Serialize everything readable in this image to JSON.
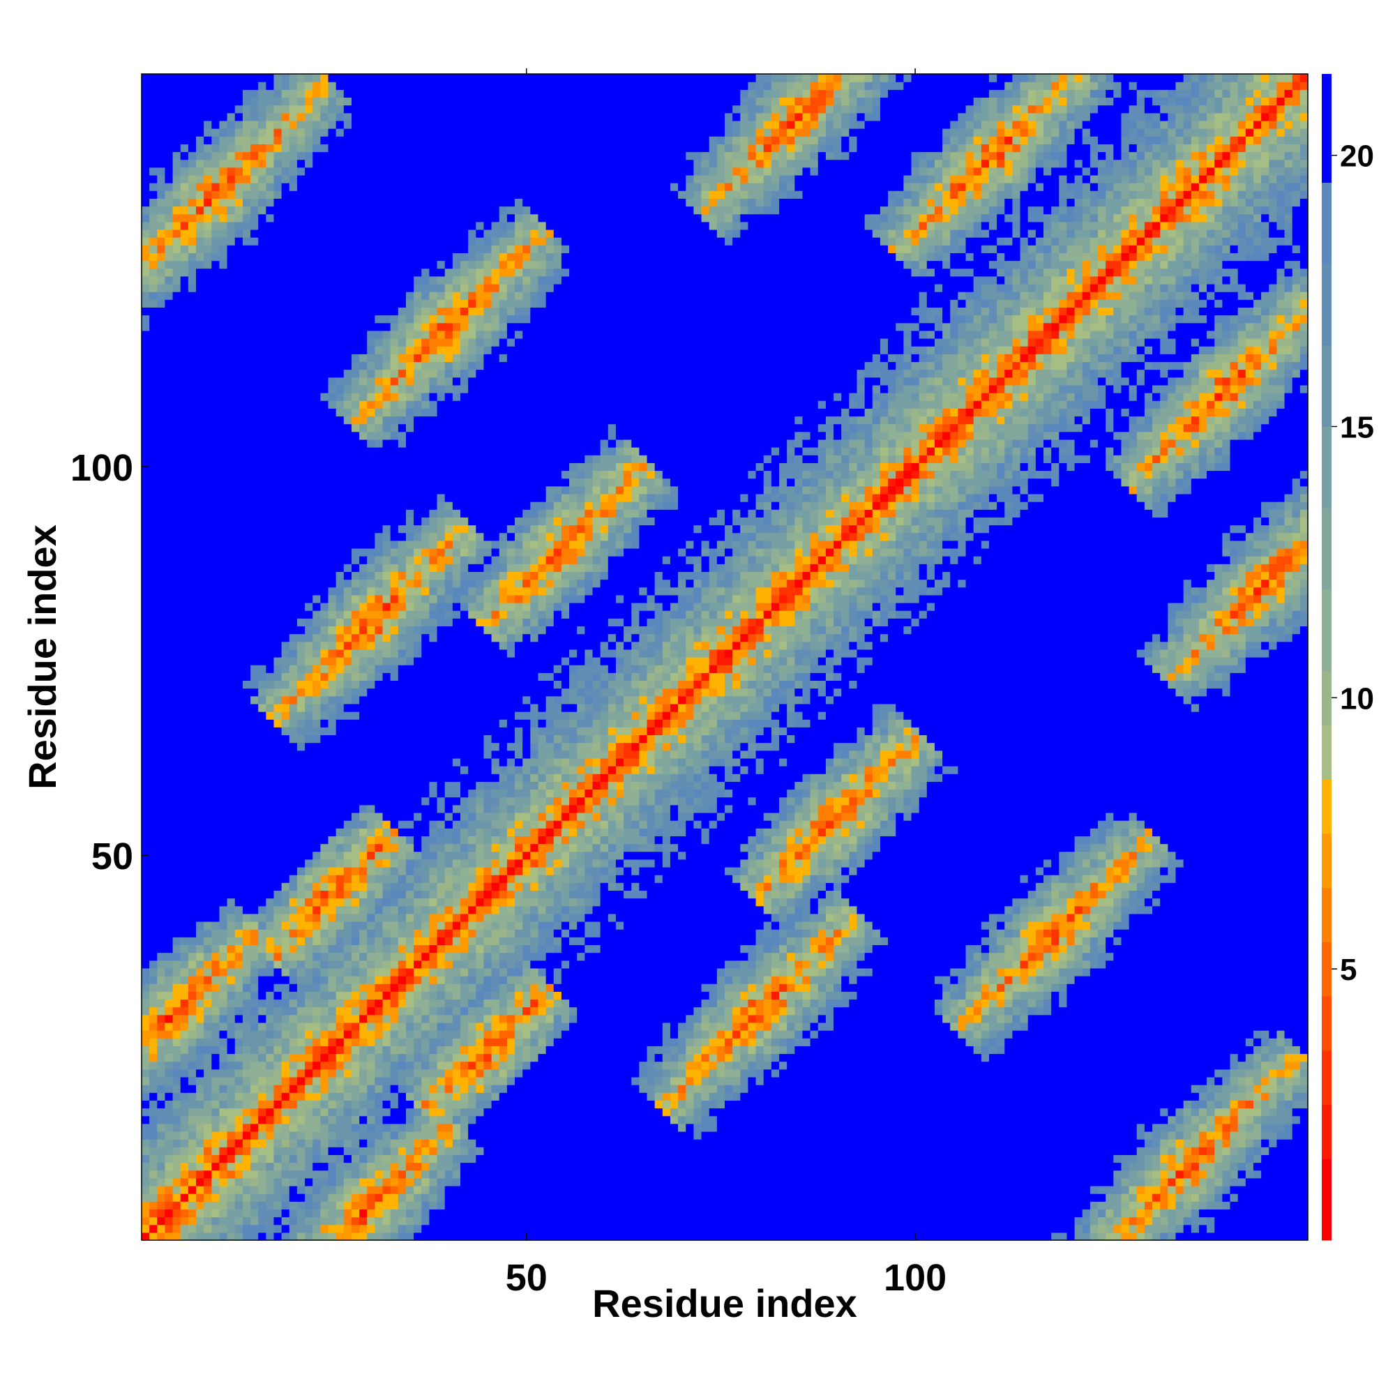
{
  "chart_data": {
    "type": "heatmap",
    "title": "",
    "xlabel": "Residue index",
    "ylabel": "Residue index",
    "n_residues": 150,
    "x_range": [
      1,
      150
    ],
    "y_range": [
      1,
      150
    ],
    "x_ticks": [
      50,
      100
    ],
    "y_ticks": [
      50,
      100
    ],
    "colorbar": {
      "range": [
        0,
        21.5
      ],
      "ticks": [
        5,
        10,
        15,
        20
      ],
      "levels": [
        {
          "max": 1.5,
          "color": "#ff0000"
        },
        {
          "max": 2.5,
          "color": "#ff1a00"
        },
        {
          "max": 3.5,
          "color": "#ff3300"
        },
        {
          "max": 4.5,
          "color": "#ff4d00"
        },
        {
          "max": 5.5,
          "color": "#ff6600"
        },
        {
          "max": 6.5,
          "color": "#ff8000"
        },
        {
          "max": 7.5,
          "color": "#ff9900"
        },
        {
          "max": 8.5,
          "color": "#ffb300"
        },
        {
          "max": 9.5,
          "color": "#a6bd84"
        },
        {
          "max": 10.5,
          "color": "#9bb58a"
        },
        {
          "max": 12.0,
          "color": "#8fb095"
        },
        {
          "max": 13.5,
          "color": "#82a69c"
        },
        {
          "max": 15.0,
          "color": "#76a0a4"
        },
        {
          "max": 16.5,
          "color": "#6b95ab"
        },
        {
          "max": 18.0,
          "color": "#628eb5"
        },
        {
          "max": 19.5,
          "color": "#5a88bc"
        },
        {
          "max": 21.5,
          "color": "#0000ff"
        }
      ]
    },
    "distance_cutoff_color": "#0000ff",
    "contact_features": [
      {
        "i": 10,
        "j": 135,
        "width": 7
      },
      {
        "i": 30,
        "j": 80,
        "width": 6
      },
      {
        "i": 40,
        "j": 118,
        "width": 6
      },
      {
        "i": 55,
        "j": 90,
        "width": 5
      },
      {
        "i": 85,
        "j": 145,
        "width": 6
      },
      {
        "i": 110,
        "j": 140,
        "width": 6
      },
      {
        "i": 25,
        "j": 45,
        "width": 4
      },
      {
        "i": 5,
        "j": 30,
        "width": 5
      }
    ]
  }
}
